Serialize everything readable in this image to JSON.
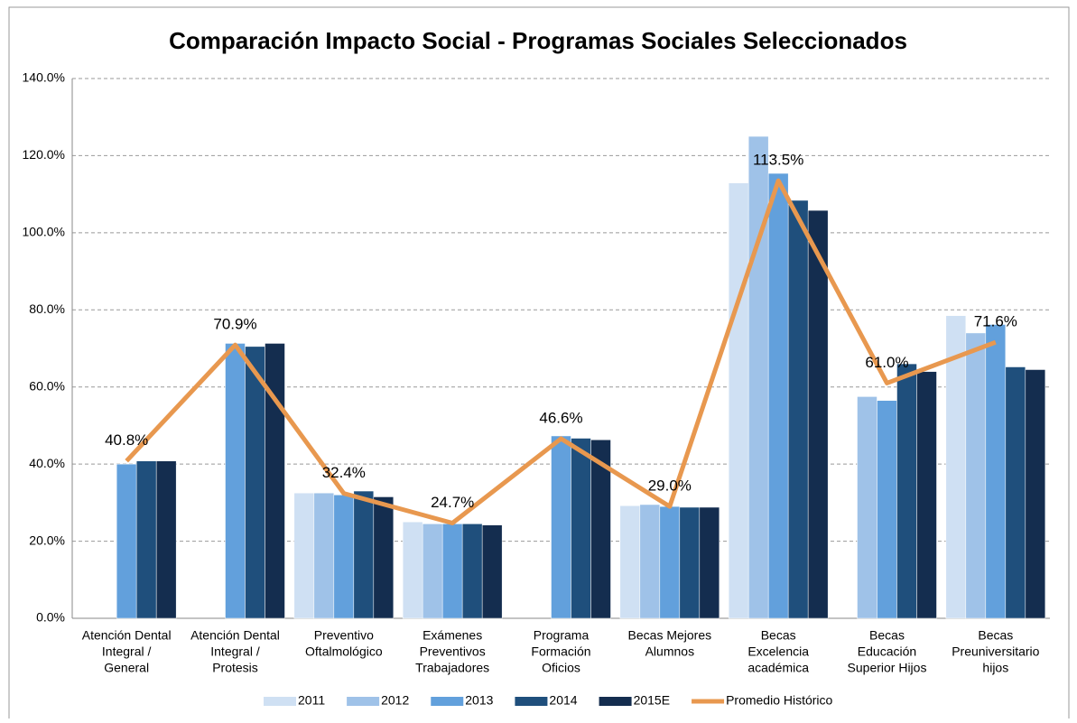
{
  "chart_data": {
    "type": "bar",
    "title": "Comparación Impacto Social - Programas Sociales Seleccionados",
    "categories": [
      [
        "Atención Dental",
        "Integral /",
        "General"
      ],
      [
        "Atención Dental",
        "Integral /",
        "Protesis"
      ],
      [
        "Preventivo",
        "Oftalmológico"
      ],
      [
        "Exámenes",
        "Preventivos",
        "Trabajadores"
      ],
      [
        "Programa",
        "Formación",
        "Oficios"
      ],
      [
        "Becas Mejores",
        "Alumnos"
      ],
      [
        "Becas",
        "Excelencia",
        "académica"
      ],
      [
        "Becas",
        "Educación",
        "Superior Hijos"
      ],
      [
        "Becas",
        "Preuniversitario",
        "hijos"
      ]
    ],
    "series": [
      {
        "name": "2011",
        "color": "#cfe0f3",
        "values": [
          null,
          null,
          32.5,
          25.0,
          null,
          29.2,
          112.9,
          null,
          78.5
        ]
      },
      {
        "name": "2012",
        "color": "#9fc2e8",
        "values": [
          null,
          null,
          32.5,
          24.5,
          null,
          29.5,
          125.0,
          57.5,
          74.0
        ]
      },
      {
        "name": "2013",
        "color": "#62a0dc",
        "values": [
          40.0,
          71.3,
          32.0,
          24.5,
          47.3,
          29.0,
          115.4,
          56.5,
          76.2
        ]
      },
      {
        "name": "2014",
        "color": "#1f4f7c",
        "values": [
          40.8,
          70.5,
          33.0,
          24.5,
          46.7,
          28.8,
          108.4,
          66.0,
          65.2
        ]
      },
      {
        "name": "2015E",
        "color": "#142d4f",
        "values": [
          40.8,
          71.3,
          31.5,
          24.2,
          46.3,
          28.8,
          105.8,
          64.0,
          64.5
        ]
      },
      {
        "name": "Promedio Histórico",
        "type": "line",
        "color": "#e8984f",
        "values": [
          40.8,
          70.9,
          32.4,
          24.7,
          46.6,
          29.0,
          113.5,
          61.0,
          71.6
        ],
        "value_labels": [
          "40.8%",
          "70.9%",
          "32.4%",
          "24.7%",
          "46.6%",
          "29.0%",
          "113.5%",
          "61.0%",
          "71.6%"
        ]
      }
    ],
    "ylim": [
      0,
      140
    ],
    "yticks": [
      {
        "value": 0,
        "label": "0.0%"
      },
      {
        "value": 20,
        "label": "20.0%"
      },
      {
        "value": 40,
        "label": "40.0%"
      },
      {
        "value": 60,
        "label": "60.0%"
      },
      {
        "value": 80,
        "label": "80.0%"
      },
      {
        "value": 100,
        "label": "100.0%"
      },
      {
        "value": 120,
        "label": "120.0%"
      },
      {
        "value": 140,
        "label": "140.0%"
      }
    ],
    "grid": true
  }
}
